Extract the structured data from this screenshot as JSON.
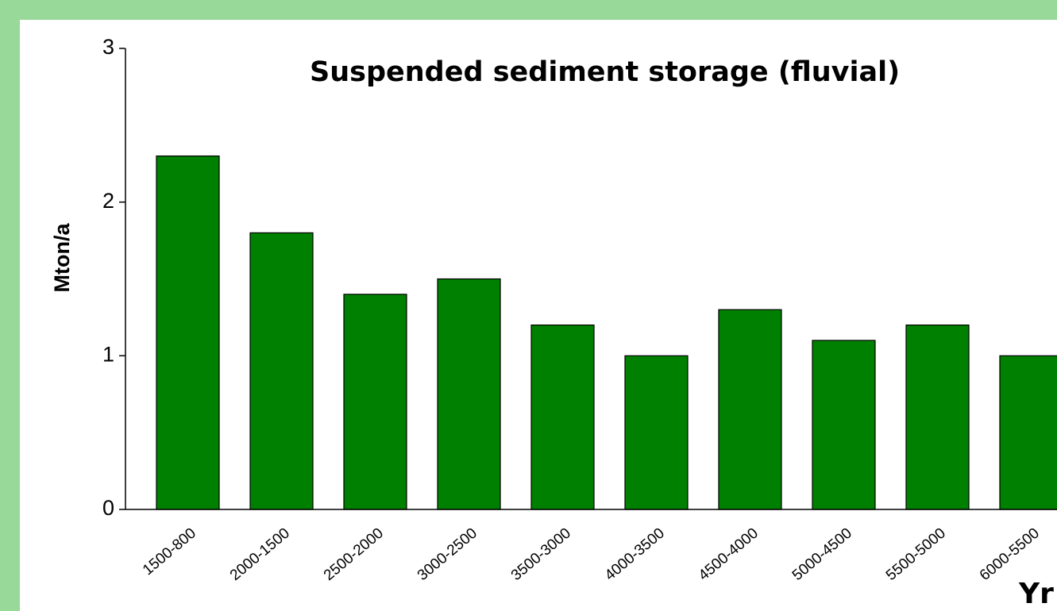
{
  "chart_data": {
    "type": "bar",
    "title": "Suspended sediment storage (fluvial)",
    "y_label": "Mton/a",
    "x_label": "Yr",
    "categories": [
      "1500-800",
      "2000-1500",
      "2500-2000",
      "3000-2500",
      "3500-3000",
      "4000-3500",
      "4500-4000",
      "5000-4500",
      "5500-5000",
      "6000-5500"
    ],
    "values": [
      2.3,
      1.8,
      1.4,
      1.5,
      1.2,
      1.0,
      1.3,
      1.1,
      1.2,
      1.0
    ],
    "color": "#008000",
    "ylim": [
      0,
      3
    ],
    "yticks": [
      0,
      1,
      2,
      3
    ],
    "grid": false
  }
}
